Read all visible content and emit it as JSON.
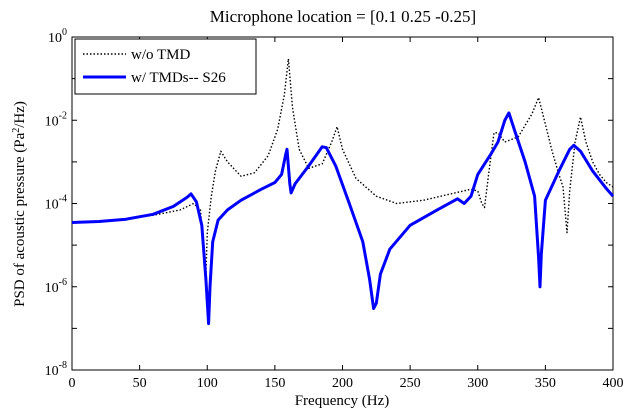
{
  "chart_data": {
    "type": "line",
    "title": "Microphone location = [0.1 0.25 -0.25]",
    "xlabel": "Frequency (Hz)",
    "ylabel_parts": [
      "PSD of acoustic pressure (Pa",
      "2",
      "/Hz)"
    ],
    "xlim": [
      0,
      400
    ],
    "ylim": [
      1e-08,
      1
    ],
    "yscale": "log",
    "x_ticks": [
      0,
      50,
      100,
      150,
      200,
      250,
      300,
      350,
      400
    ],
    "y_ticks": [
      {
        "value": 1e-08,
        "base": "10",
        "exp": "-8"
      },
      {
        "value": 1e-06,
        "base": "10",
        "exp": "-6"
      },
      {
        "value": 0.0001,
        "base": "10",
        "exp": "-4"
      },
      {
        "value": 0.01,
        "base": "10",
        "exp": "-2"
      },
      {
        "value": 1,
        "base": "10",
        "exp": "0"
      }
    ],
    "grid": false,
    "legend_position": "top-left",
    "series": [
      {
        "name": "w/o TMD",
        "style": "dotted",
        "color": "#000000",
        "points": [
          [
            0,
            3.5e-05
          ],
          [
            20,
            3.7e-05
          ],
          [
            40,
            4.2e-05
          ],
          [
            60,
            5.2e-05
          ],
          [
            80,
            7e-05
          ],
          [
            90,
            0.0001
          ],
          [
            95,
            7e-05
          ],
          [
            98,
            4e-06
          ],
          [
            99,
            2e-06
          ],
          [
            100,
            2e-05
          ],
          [
            103,
            0.00015
          ],
          [
            106,
            0.0006
          ],
          [
            110,
            0.0018
          ],
          [
            115,
            0.001
          ],
          [
            125,
            0.00045
          ],
          [
            135,
            0.00055
          ],
          [
            145,
            0.0014
          ],
          [
            152,
            0.006
          ],
          [
            157,
            0.04
          ],
          [
            160,
            0.3
          ],
          [
            163,
            0.02
          ],
          [
            168,
            0.002
          ],
          [
            175,
            0.0007
          ],
          [
            185,
            0.0009
          ],
          [
            192,
            0.003
          ],
          [
            196,
            0.007
          ],
          [
            200,
            0.002
          ],
          [
            210,
            0.0004
          ],
          [
            225,
            0.00015
          ],
          [
            240,
            0.0001
          ],
          [
            260,
            0.00012
          ],
          [
            280,
            0.00017
          ],
          [
            295,
            0.00022
          ],
          [
            300,
            0.0002
          ],
          [
            303,
            0.0001
          ],
          [
            305,
            8e-05
          ],
          [
            308,
            0.0005
          ],
          [
            312,
            0.005
          ],
          [
            315,
            0.005
          ],
          [
            320,
            0.003
          ],
          [
            330,
            0.004
          ],
          [
            340,
            0.014
          ],
          [
            345,
            0.035
          ],
          [
            350,
            0.008
          ],
          [
            355,
            0.0018
          ],
          [
            360,
            0.0005
          ],
          [
            363,
            0.00025
          ],
          [
            366,
            2e-05
          ],
          [
            368,
            0.0002
          ],
          [
            372,
            0.003
          ],
          [
            376,
            0.012
          ],
          [
            380,
            0.003
          ],
          [
            385,
            0.001
          ],
          [
            390,
            0.0005
          ],
          [
            395,
            0.00032
          ],
          [
            400,
            0.00025
          ]
        ]
      },
      {
        "name": "w/ TMDs-- S26",
        "style": "solid",
        "color": "#0000ff",
        "points": [
          [
            0,
            3.5e-05
          ],
          [
            20,
            3.7e-05
          ],
          [
            40,
            4.2e-05
          ],
          [
            60,
            5.5e-05
          ],
          [
            75,
            8.5e-05
          ],
          [
            85,
            0.00014
          ],
          [
            88,
            0.00017
          ],
          [
            92,
            0.00011
          ],
          [
            96,
            3e-05
          ],
          [
            99,
            1.5e-06
          ],
          [
            101,
            1.3e-07
          ],
          [
            102,
            1e-06
          ],
          [
            104,
            1.2e-05
          ],
          [
            108,
            4e-05
          ],
          [
            115,
            7e-05
          ],
          [
            125,
            0.00012
          ],
          [
            140,
            0.00022
          ],
          [
            150,
            0.00032
          ],
          [
            155,
            0.0005
          ],
          [
            158,
            0.0015
          ],
          [
            159,
            0.002
          ],
          [
            161,
            0.0003
          ],
          [
            162,
            0.00018
          ],
          [
            165,
            0.0003
          ],
          [
            175,
            0.0008
          ],
          [
            185,
            0.0023
          ],
          [
            188,
            0.0022
          ],
          [
            195,
            0.0008
          ],
          [
            205,
            0.0001
          ],
          [
            215,
            1.2e-05
          ],
          [
            220,
            1.5e-06
          ],
          [
            223,
            3e-07
          ],
          [
            225,
            4e-07
          ],
          [
            228,
            2e-06
          ],
          [
            235,
            8e-06
          ],
          [
            250,
            3e-05
          ],
          [
            270,
            7e-05
          ],
          [
            285,
            0.00013
          ],
          [
            290,
            0.0001
          ],
          [
            295,
            0.00015
          ],
          [
            300,
            0.0005
          ],
          [
            310,
            0.0016
          ],
          [
            315,
            0.003
          ],
          [
            320,
            0.01
          ],
          [
            323,
            0.015
          ],
          [
            327,
            0.006
          ],
          [
            335,
            0.001
          ],
          [
            342,
            0.00015
          ],
          [
            345,
            5e-06
          ],
          [
            346,
            1e-06
          ],
          [
            347,
            6e-06
          ],
          [
            350,
            0.00012
          ],
          [
            360,
            0.0006
          ],
          [
            368,
            0.002
          ],
          [
            371,
            0.0025
          ],
          [
            376,
            0.0018
          ],
          [
            385,
            0.0006
          ],
          [
            395,
            0.00023
          ],
          [
            400,
            0.00015
          ]
        ]
      }
    ]
  }
}
